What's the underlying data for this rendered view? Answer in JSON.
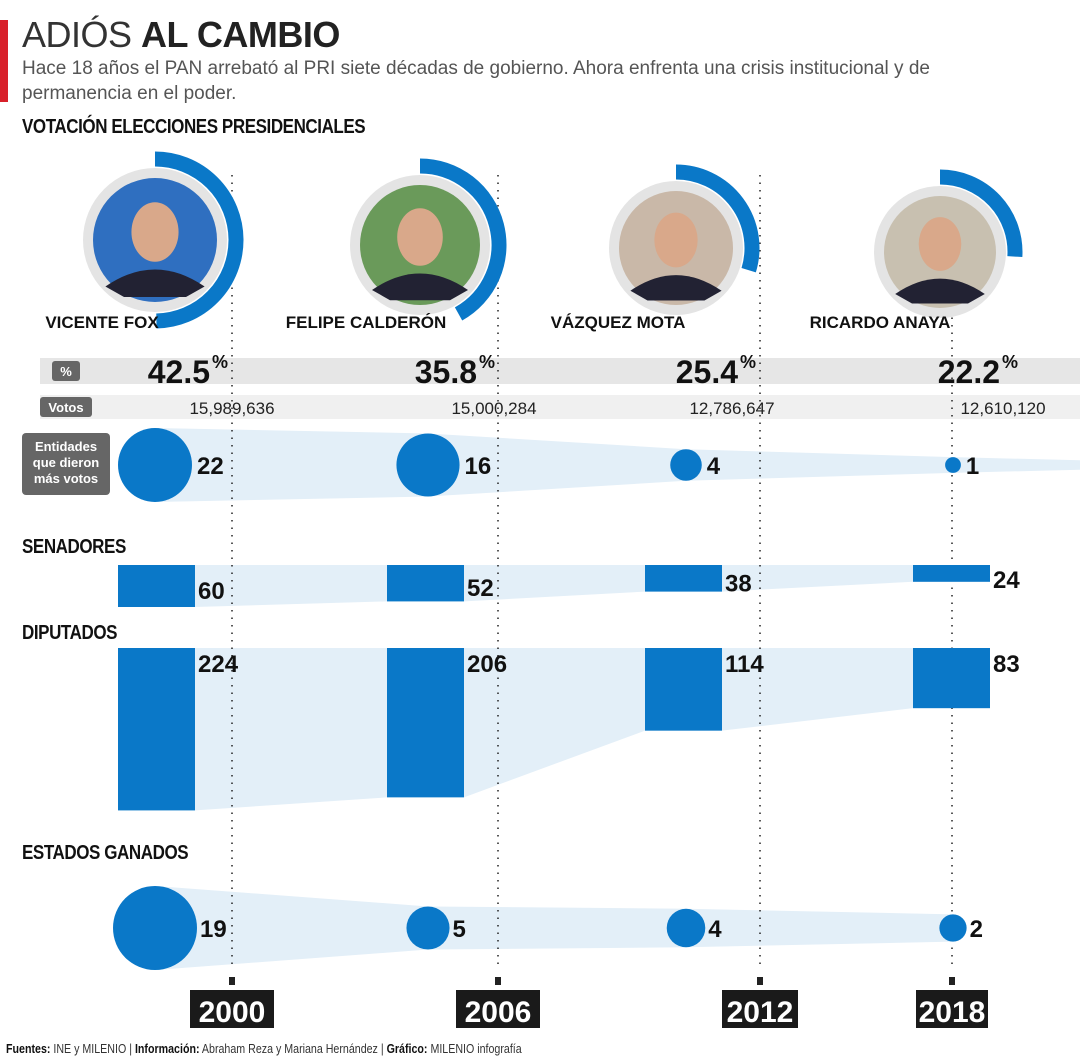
{
  "header": {
    "title_light": "ADIÓS",
    "title_bold": "AL CAMBIO",
    "subtitle": "Hace 18 años el PAN arrebató al PRI siete décadas de gobierno. Ahora enfrenta una crisis institucional y de permanencia en el poder."
  },
  "sections": {
    "presidential": "VOTACIÓN ELECCIONES PRESIDENCIALES",
    "senators": "SENADORES",
    "deputies": "DIPUTADOS",
    "states": "ESTADOS GANADOS"
  },
  "row_labels": {
    "percent": "%",
    "votes": "Votos",
    "entities": [
      "Entidades",
      "que dieron",
      "más votos"
    ]
  },
  "footer": {
    "sources_label": "Fuentes:",
    "sources": "INE y MILENIO |",
    "info_label": "Información:",
    "info": "Abraham Reza y Mariana Hernández |",
    "graphic_label": "Gráfico:",
    "graphic": "MILENIO infografía"
  },
  "colors": {
    "accent": "#0a78c8",
    "band": "#e3eff8",
    "title_bar": "#d8202a"
  },
  "chart_data": {
    "type": "table",
    "categories": [
      "2000",
      "2006",
      "2012",
      "2018"
    ],
    "candidates": [
      "VICENTE FOX",
      "FELIPE CALDERÓN",
      "VÁZQUEZ MOTA",
      "RICARDO ANAYA"
    ],
    "percent": [
      "42.5",
      "35.8",
      "25.4",
      "22.2"
    ],
    "percent_unit": "%",
    "votes": [
      "15,989,636",
      "15,000,284",
      "12,786,647",
      "12,610,120"
    ],
    "entities_most_votes": [
      22,
      16,
      4,
      1
    ],
    "senators": [
      60,
      52,
      38,
      24
    ],
    "deputies": [
      224,
      206,
      114,
      83
    ],
    "states_won": [
      19,
      5,
      4,
      2
    ]
  }
}
